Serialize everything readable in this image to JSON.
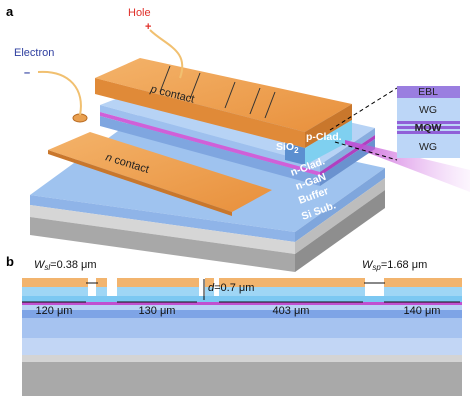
{
  "panel_a": {
    "label": "a",
    "hole": "Hole",
    "hole_sign": "+",
    "electron": "Electron",
    "electron_sign": "–",
    "p_contact": {
      "italic": "p",
      "rest": " contact"
    },
    "n_contact": {
      "italic": "n",
      "rest": " contact"
    },
    "sio2": {
      "base": "SiO",
      "sub": "2"
    },
    "p_clad": "p-Clad.",
    "n_clad": "n-Clad.",
    "n_gan": "n-GaN",
    "buffer": "Buffer",
    "si_sub": "Si Sub.",
    "inset": [
      "EBL",
      "WG",
      "MQW",
      "WG"
    ]
  },
  "panel_b": {
    "label": "b",
    "w_sl": {
      "base": "W",
      "sub": "sl",
      "rest": "=0.38 μm"
    },
    "w_sp": {
      "base": "W",
      "sub": "sp",
      "rest": "=1.68 μm"
    },
    "d": {
      "base": "d",
      "rest": "=0.7 μm"
    },
    "lengths": [
      "120 μm",
      "130 μm",
      "403 μm",
      "140 μm"
    ]
  }
}
